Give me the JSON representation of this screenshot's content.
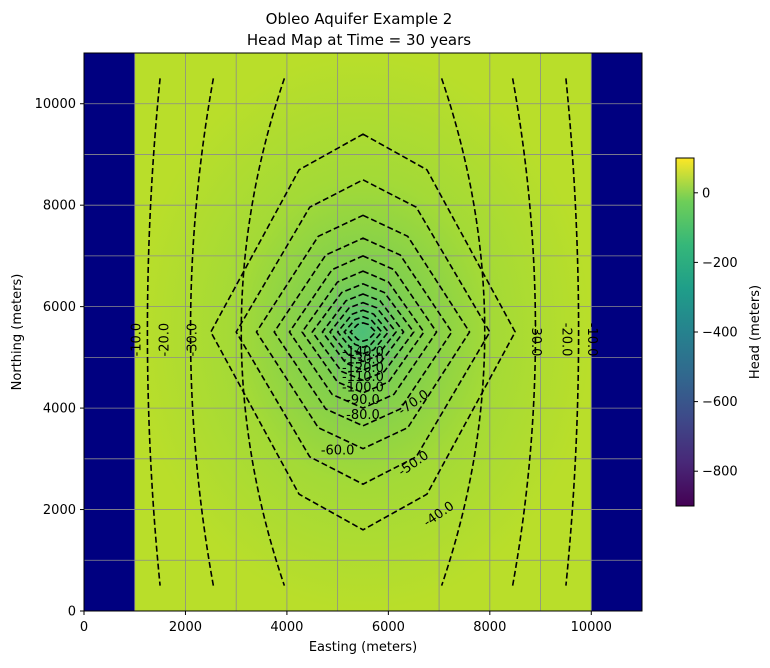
{
  "chart_data": {
    "type": "heatmap",
    "title": [
      "Obleo Aquifer Example 2",
      "Head Map at Time = 30 years"
    ],
    "xlabel": "Easting (meters)",
    "ylabel": "Northing (meters)",
    "xlim": [
      0,
      11000
    ],
    "ylim": [
      0,
      11000
    ],
    "xticks": [
      0,
      2000,
      4000,
      6000,
      8000,
      10000
    ],
    "yticks": [
      0,
      2000,
      4000,
      6000,
      8000,
      10000
    ],
    "grid": true,
    "grid_spacing": 1000,
    "colormap": "viridis",
    "colorbar": {
      "label": "Head (meters)",
      "range": [
        -900,
        100
      ],
      "ticks": [
        0,
        -200,
        -400,
        -600,
        -800
      ],
      "tick_labels": [
        "0",
        "−200",
        "−400",
        "−600",
        "−800"
      ]
    },
    "inactive_columns": [
      [
        0,
        1000
      ],
      [
        10000,
        11000
      ]
    ],
    "inactive_color": "#000080",
    "active_region": {
      "x": [
        1000,
        10000
      ],
      "y": [
        0,
        11000
      ]
    },
    "drawdown_center": [
      5500,
      5500
    ],
    "contours": {
      "style": "dashed",
      "color": "#000000",
      "levels": [
        -10,
        -20,
        -30,
        -40,
        -50,
        -60,
        -70,
        -80,
        -90,
        -100,
        -110,
        -120,
        -130,
        -140
      ],
      "labels": [
        "-10.0",
        "-20.0",
        "-30.0",
        "-40.0",
        "-50.0",
        "-60.0",
        "-70.0",
        "-80.0",
        "-90.0",
        "-100.0",
        "-110.0",
        "-120.0",
        "-130.0",
        "-140.0"
      ]
    },
    "ring_radii": [
      [
        3000,
        3900
      ],
      [
        2500,
        3000
      ],
      [
        2100,
        2300
      ],
      [
        1750,
        1850
      ],
      [
        1450,
        1500
      ],
      [
        1200,
        1200
      ],
      [
        1000,
        950
      ],
      [
        800,
        750
      ],
      [
        650,
        580
      ],
      [
        500,
        430
      ],
      [
        370,
        300
      ],
      [
        250,
        180
      ]
    ],
    "side_lines": {
      "west": [
        {
          "top": 1500,
          "mid": 1000,
          "bottom": 1500
        },
        {
          "top": 2550,
          "mid": 1650,
          "bottom": 2550
        },
        {
          "top": 3950,
          "mid": 2250,
          "bottom": 3950
        }
      ],
      "east": [
        {
          "top": 7050,
          "mid": 8750,
          "bottom": 7050
        },
        {
          "top": 8450,
          "mid": 9350,
          "bottom": 8450
        },
        {
          "top": 9500,
          "mid": 10000,
          "bottom": 9500
        }
      ]
    }
  }
}
